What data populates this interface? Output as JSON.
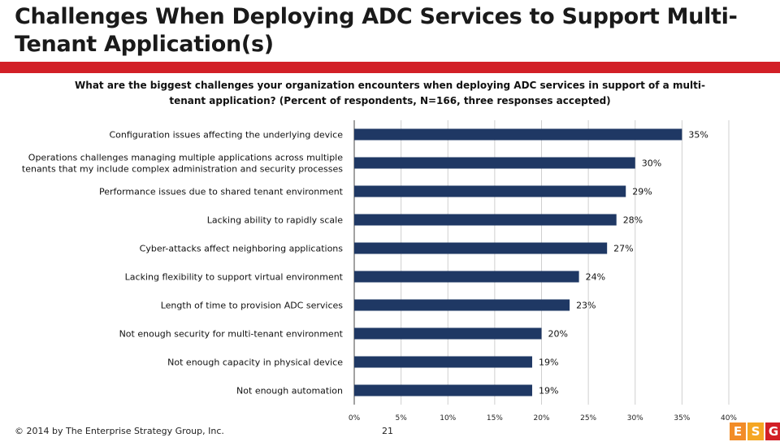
{
  "slide": {
    "title_line1": "Challenges When Deploying ADC Services to Support Multi-",
    "title_line2": "Tenant Application(s)",
    "question": "What are the biggest challenges your organization encounters when deploying ADC services in support of a multi-tenant application? (Percent of respondents, N=166, three responses accepted)",
    "footer": "© 2014 by The Enterprise Strategy Group, Inc.",
    "page_number": "21",
    "logo_letters": [
      "E",
      "S",
      "G"
    ]
  },
  "colors": {
    "bar": "#1f3864",
    "accent_red": "#d21f26",
    "grid": "#cfcfcf"
  },
  "chart_data": {
    "type": "bar",
    "orientation": "horizontal",
    "categories": [
      [
        "Configuration issues affecting the underlying device"
      ],
      [
        "Operations challenges managing multiple applications across multiple",
        "tenants that my include complex administration and security processes"
      ],
      [
        "Performance issues due to shared tenant environment"
      ],
      [
        "Lacking ability to rapidly scale"
      ],
      [
        "Cyber-attacks affect neighboring applications"
      ],
      [
        "Lacking flexibility to support virtual environment"
      ],
      [
        "Length of time to provision ADC services"
      ],
      [
        "Not enough security for multi-tenant environment"
      ],
      [
        "Not enough capacity in physical device"
      ],
      [
        "Not enough automation"
      ]
    ],
    "values": [
      35,
      30,
      29,
      28,
      27,
      24,
      23,
      20,
      19,
      19
    ],
    "value_labels": [
      "35%",
      "30%",
      "29%",
      "28%",
      "27%",
      "24%",
      "23%",
      "20%",
      "19%",
      "19%"
    ],
    "xlim": [
      0,
      40
    ],
    "x_ticks": [
      "0%",
      "5%",
      "10%",
      "15%",
      "20%",
      "25%",
      "30%",
      "35%",
      "40%"
    ],
    "grid": true
  }
}
